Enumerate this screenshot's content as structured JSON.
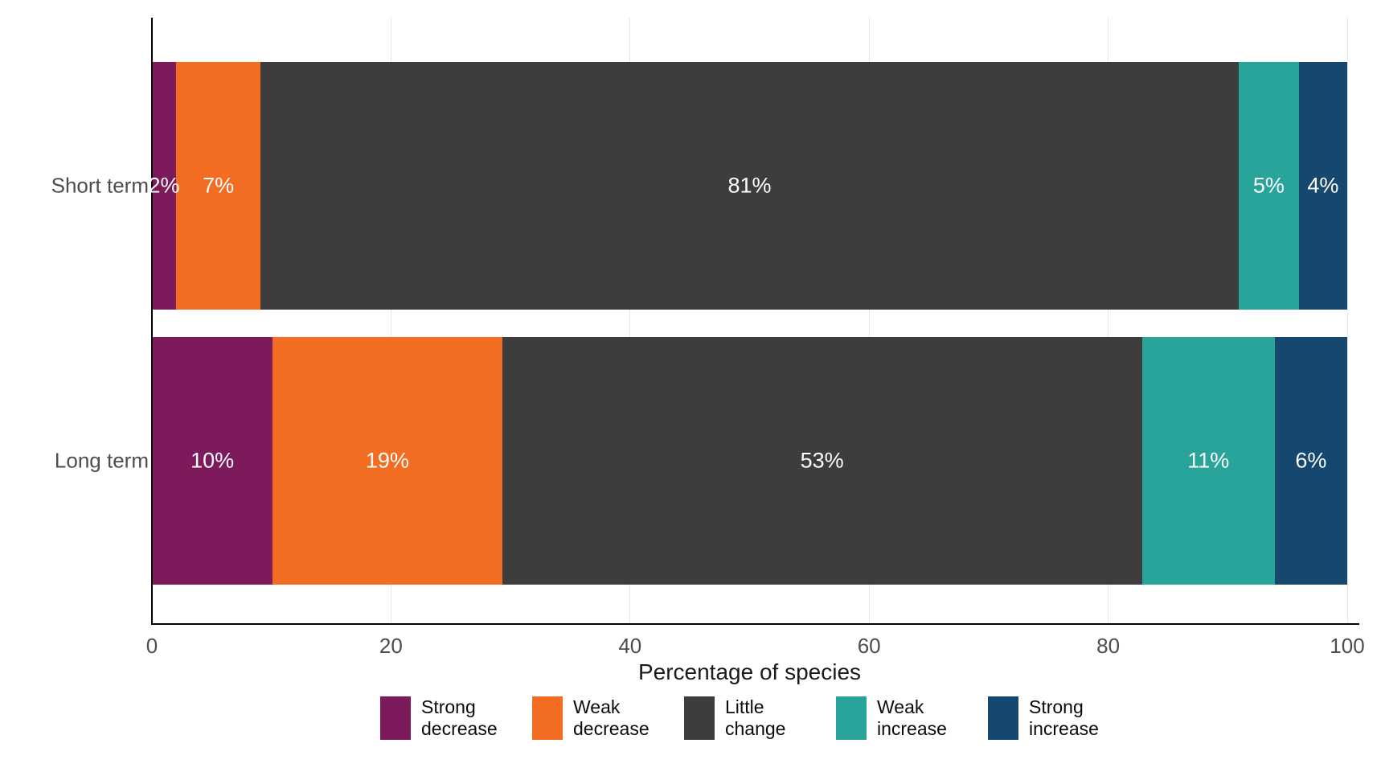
{
  "chart_data": {
    "type": "bar",
    "orientation": "horizontal",
    "stacked": true,
    "categories": [
      "Short term",
      "Long term"
    ],
    "series": [
      {
        "name": "Strong decrease",
        "color": "#7C1A5B",
        "values": [
          2,
          10
        ]
      },
      {
        "name": "Weak decrease",
        "color": "#F26C21",
        "values": [
          7,
          19
        ]
      },
      {
        "name": "Little change",
        "color": "#3D3D3D",
        "values": [
          81,
          53
        ]
      },
      {
        "name": "Weak increase",
        "color": "#28A49A",
        "values": [
          5,
          11
        ]
      },
      {
        "name": "Strong increase",
        "color": "#15476F",
        "values": [
          4,
          6
        ]
      }
    ],
    "bar_labels": [
      [
        "2%",
        "7%",
        "81%",
        "5%",
        "4%"
      ],
      [
        "10%",
        "19%",
        "53%",
        "11%",
        "6%"
      ]
    ],
    "xlabel": "Percentage of species",
    "xlim": [
      0,
      100
    ],
    "x_ticks": [
      0,
      20,
      40,
      60,
      80,
      100
    ],
    "x_tick_labels": [
      "0",
      "20",
      "40",
      "60",
      "80",
      "100"
    ],
    "legend_position": "bottom",
    "grid": true
  },
  "colors": {
    "axis_text": "#4D4D4D",
    "axis_title": "#1A1A1A",
    "gridline": "#E8E8E8",
    "spine": "#000000",
    "bar_label_text": "#FFFFFF",
    "background": "#FFFFFF"
  }
}
